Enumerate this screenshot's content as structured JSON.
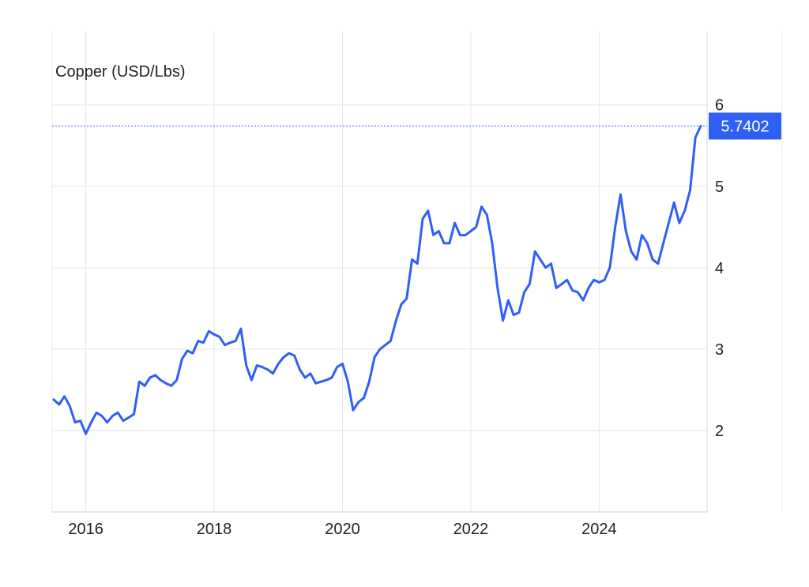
{
  "chart_data": {
    "type": "line",
    "title": "Copper (USD/Lbs)",
    "xlabel": "",
    "ylabel": "",
    "x_ticks": [
      "2016",
      "2018",
      "2020",
      "2022",
      "2024"
    ],
    "y_ticks": [
      "2",
      "3",
      "4",
      "5",
      "6"
    ],
    "xlim": [
      "2015-07",
      "2025-08"
    ],
    "ylim": [
      1,
      6.9
    ],
    "grid": true,
    "last_value": "5.7402",
    "colors": {
      "line": "#2f5ff5",
      "label_bg": "#2f5ff5",
      "grid": "#e6e6e6"
    },
    "series": [
      {
        "x": [
          "2015-07",
          "2015-08",
          "2015-09",
          "2015-10",
          "2015-11",
          "2015-12",
          "2016-01",
          "2016-02",
          "2016-03",
          "2016-04",
          "2016-05",
          "2016-06",
          "2016-07",
          "2016-08",
          "2016-09",
          "2016-10",
          "2016-11",
          "2016-12",
          "2017-01",
          "2017-02",
          "2017-03",
          "2017-04",
          "2017-05",
          "2017-06",
          "2017-07",
          "2017-08",
          "2017-09",
          "2017-10",
          "2017-11",
          "2017-12",
          "2018-01",
          "2018-02",
          "2018-03",
          "2018-04",
          "2018-05",
          "2018-06",
          "2018-07",
          "2018-08",
          "2018-09",
          "2018-10",
          "2018-11",
          "2018-12",
          "2019-01",
          "2019-02",
          "2019-03",
          "2019-04",
          "2019-05",
          "2019-06",
          "2019-07",
          "2019-08",
          "2019-09",
          "2019-10",
          "2019-11",
          "2019-12",
          "2020-01",
          "2020-02",
          "2020-03",
          "2020-04",
          "2020-05",
          "2020-06",
          "2020-07",
          "2020-08",
          "2020-09",
          "2020-10",
          "2020-11",
          "2020-12",
          "2021-01",
          "2021-02",
          "2021-03",
          "2021-04",
          "2021-05",
          "2021-06",
          "2021-07",
          "2021-08",
          "2021-09",
          "2021-10",
          "2021-11",
          "2021-12",
          "2022-01",
          "2022-02",
          "2022-03",
          "2022-04",
          "2022-05",
          "2022-06",
          "2022-07",
          "2022-08",
          "2022-09",
          "2022-10",
          "2022-11",
          "2022-12",
          "2023-01",
          "2023-02",
          "2023-03",
          "2023-04",
          "2023-05",
          "2023-06",
          "2023-07",
          "2023-08",
          "2023-09",
          "2023-10",
          "2023-11",
          "2023-12",
          "2024-01",
          "2024-02",
          "2024-03",
          "2024-04",
          "2024-05",
          "2024-06",
          "2024-07",
          "2024-08",
          "2024-09",
          "2024-10",
          "2024-11",
          "2024-12",
          "2025-01",
          "2025-02",
          "2025-03",
          "2025-04",
          "2025-05",
          "2025-06",
          "2025-07",
          "2025-08"
        ],
        "values": [
          2.38,
          2.32,
          2.42,
          2.3,
          2.1,
          2.12,
          1.96,
          2.1,
          2.22,
          2.18,
          2.1,
          2.18,
          2.22,
          2.12,
          2.16,
          2.2,
          2.6,
          2.55,
          2.65,
          2.68,
          2.62,
          2.58,
          2.55,
          2.62,
          2.88,
          2.98,
          2.95,
          3.1,
          3.08,
          3.22,
          3.18,
          3.15,
          3.05,
          3.08,
          3.1,
          3.25,
          2.8,
          2.62,
          2.8,
          2.78,
          2.75,
          2.7,
          2.82,
          2.9,
          2.95,
          2.92,
          2.75,
          2.65,
          2.7,
          2.58,
          2.6,
          2.62,
          2.65,
          2.78,
          2.82,
          2.6,
          2.25,
          2.35,
          2.4,
          2.6,
          2.9,
          3.0,
          3.05,
          3.1,
          3.35,
          3.55,
          3.62,
          4.1,
          4.05,
          4.6,
          4.7,
          4.4,
          4.45,
          4.3,
          4.3,
          4.55,
          4.4,
          4.4,
          4.45,
          4.5,
          4.75,
          4.65,
          4.3,
          3.75,
          3.35,
          3.6,
          3.42,
          3.45,
          3.7,
          3.8,
          4.2,
          4.1,
          4.0,
          4.05,
          3.75,
          3.8,
          3.85,
          3.72,
          3.7,
          3.6,
          3.75,
          3.85,
          3.82,
          3.85,
          4.0,
          4.5,
          4.9,
          4.45,
          4.2,
          4.1,
          4.4,
          4.3,
          4.1,
          4.05,
          4.3,
          4.55,
          4.8,
          4.55,
          4.7,
          4.95,
          5.6,
          5.74
        ]
      }
    ]
  }
}
